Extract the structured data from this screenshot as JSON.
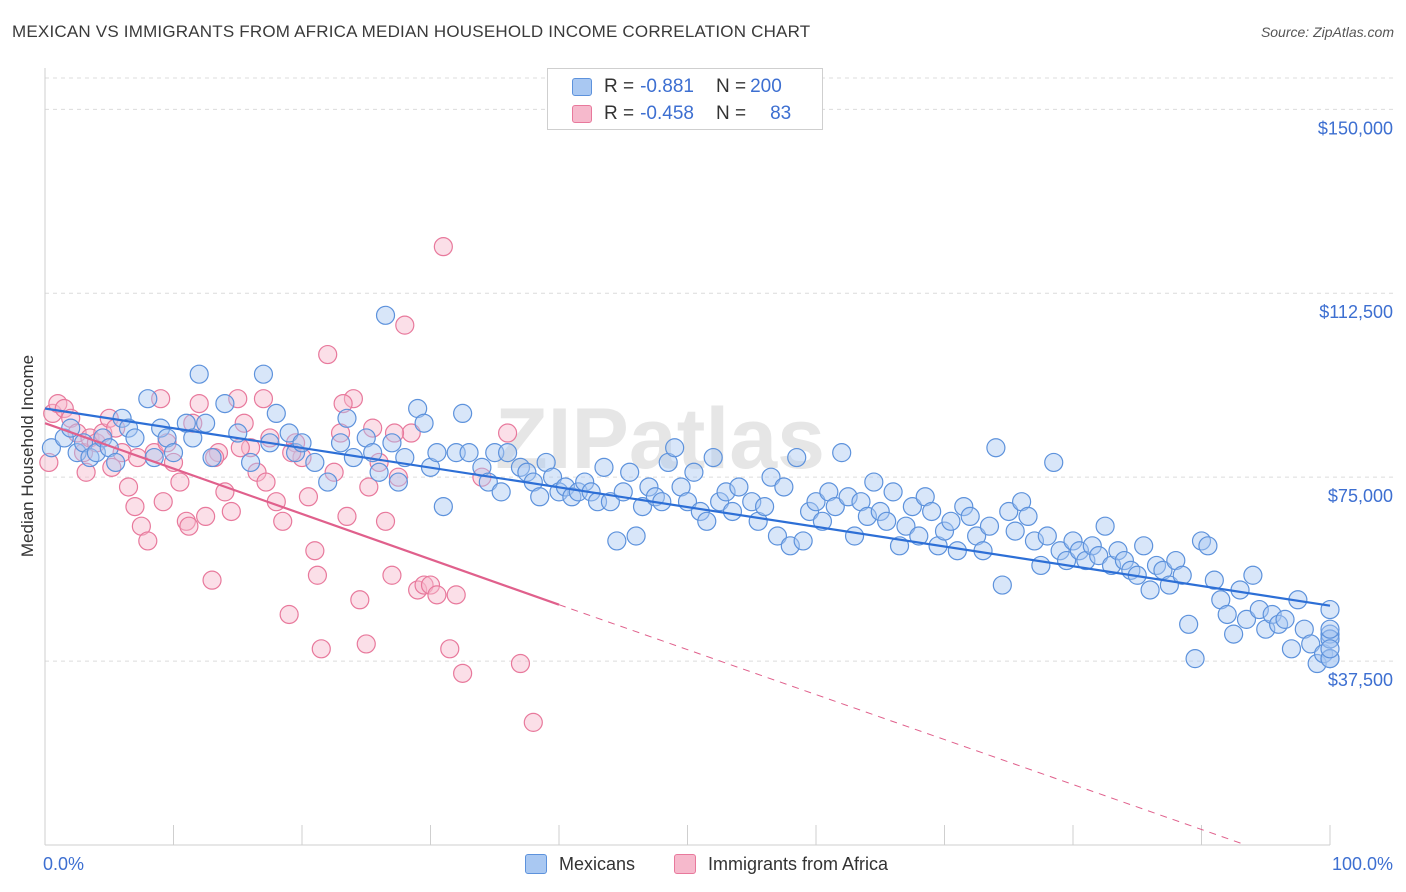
{
  "header": {
    "title": "MEXICAN VS IMMIGRANTS FROM AFRICA MEDIAN HOUSEHOLD INCOME CORRELATION CHART",
    "source": "Source: ZipAtlas.com"
  },
  "watermark": "ZIPatlas",
  "colors": {
    "blue_fill": "#a9c8f2",
    "blue_stroke": "#5d92dc",
    "blue_line": "#2d6fd6",
    "pink_fill": "#f6b9cc",
    "pink_stroke": "#e8799c",
    "pink_line": "#e0608c",
    "axis_text": "#3d6fd1",
    "grid": "#dcdcdc"
  },
  "legend": {
    "rows": [
      {
        "r_label": "R = ",
        "r_value": "-0.881",
        "n_label": "N = ",
        "n_value": "200"
      },
      {
        "r_label": "R = ",
        "r_value": "-0.458",
        "n_label": "N = ",
        "n_value": "83"
      }
    ]
  },
  "bottom_legend": [
    "Mexicans",
    "Immigrants from Africa"
  ],
  "chart_data": {
    "type": "scatter",
    "title": "MEXICAN VS IMMIGRANTS FROM AFRICA MEDIAN HOUSEHOLD INCOME CORRELATION CHART",
    "xlabel": "",
    "ylabel": "Median Household Income",
    "xlim": [
      0,
      100
    ],
    "ylim": [
      0,
      157000
    ],
    "x_tick_labels": [
      "0.0%",
      "100.0%"
    ],
    "y_ticks": [
      37500,
      75000,
      112500,
      150000
    ],
    "y_tick_labels": [
      "$37,500",
      "$75,000",
      "$112,500",
      "$150,000"
    ],
    "grid": true,
    "legend_position": "top-center",
    "series": [
      {
        "name": "Mexicans",
        "r": -0.881,
        "n": 200,
        "trend": {
          "x": [
            0,
            100
          ],
          "y": [
            89000,
            48800
          ]
        },
        "points": [
          [
            0.5,
            81000
          ],
          [
            1.5,
            83000
          ],
          [
            2,
            85000
          ],
          [
            2.5,
            80000
          ],
          [
            3,
            82000
          ],
          [
            3.5,
            79000
          ],
          [
            4,
            80000
          ],
          [
            4.5,
            83000
          ],
          [
            5,
            81000
          ],
          [
            5.5,
            78000
          ],
          [
            6,
            87000
          ],
          [
            6.5,
            85000
          ],
          [
            7,
            83000
          ],
          [
            8,
            91000
          ],
          [
            8.5,
            79000
          ],
          [
            9,
            85000
          ],
          [
            9.5,
            83000
          ],
          [
            10,
            80000
          ],
          [
            11,
            86000
          ],
          [
            11.5,
            83000
          ],
          [
            12,
            96000
          ],
          [
            12.5,
            86000
          ],
          [
            13,
            79000
          ],
          [
            14,
            90000
          ],
          [
            15,
            84000
          ],
          [
            16,
            78000
          ],
          [
            17,
            96000
          ],
          [
            17.5,
            82000
          ],
          [
            18,
            88000
          ],
          [
            19,
            84000
          ],
          [
            19.5,
            80000
          ],
          [
            20,
            82000
          ],
          [
            21,
            78000
          ],
          [
            22,
            74000
          ],
          [
            23,
            82000
          ],
          [
            23.5,
            87000
          ],
          [
            24,
            79000
          ],
          [
            25,
            83000
          ],
          [
            25.5,
            80000
          ],
          [
            26,
            76000
          ],
          [
            26.5,
            108000
          ],
          [
            27,
            82000
          ],
          [
            27.5,
            74000
          ],
          [
            28,
            79000
          ],
          [
            29,
            89000
          ],
          [
            29.5,
            86000
          ],
          [
            30,
            77000
          ],
          [
            30.5,
            80000
          ],
          [
            31,
            69000
          ],
          [
            32,
            80000
          ],
          [
            32.5,
            88000
          ],
          [
            33,
            80000
          ],
          [
            34,
            77000
          ],
          [
            34.5,
            74000
          ],
          [
            35,
            80000
          ],
          [
            35.5,
            72000
          ],
          [
            36,
            80000
          ],
          [
            37,
            77000
          ],
          [
            37.5,
            76000
          ],
          [
            38,
            74000
          ],
          [
            38.5,
            71000
          ],
          [
            39,
            78000
          ],
          [
            39.5,
            75000
          ],
          [
            40,
            72000
          ],
          [
            40.5,
            73000
          ],
          [
            41,
            71000
          ],
          [
            41.5,
            72000
          ],
          [
            42,
            74000
          ],
          [
            42.5,
            72000
          ],
          [
            43,
            70000
          ],
          [
            43.5,
            77000
          ],
          [
            44,
            70000
          ],
          [
            44.5,
            62000
          ],
          [
            45,
            72000
          ],
          [
            45.5,
            76000
          ],
          [
            46,
            63000
          ],
          [
            46.5,
            69000
          ],
          [
            47,
            73000
          ],
          [
            47.5,
            71000
          ],
          [
            48,
            70000
          ],
          [
            48.5,
            78000
          ],
          [
            49,
            81000
          ],
          [
            49.5,
            73000
          ],
          [
            50,
            70000
          ],
          [
            50.5,
            76000
          ],
          [
            51,
            68000
          ],
          [
            51.5,
            66000
          ],
          [
            52,
            79000
          ],
          [
            52.5,
            70000
          ],
          [
            53,
            72000
          ],
          [
            53.5,
            68000
          ],
          [
            54,
            73000
          ],
          [
            55,
            70000
          ],
          [
            55.5,
            66000
          ],
          [
            56,
            69000
          ],
          [
            56.5,
            75000
          ],
          [
            57,
            63000
          ],
          [
            57.5,
            73000
          ],
          [
            58,
            61000
          ],
          [
            58.5,
            79000
          ],
          [
            59,
            62000
          ],
          [
            59.5,
            68000
          ],
          [
            60,
            70000
          ],
          [
            60.5,
            66000
          ],
          [
            61,
            72000
          ],
          [
            61.5,
            69000
          ],
          [
            62,
            80000
          ],
          [
            62.5,
            71000
          ],
          [
            63,
            63000
          ],
          [
            63.5,
            70000
          ],
          [
            64,
            67000
          ],
          [
            64.5,
            74000
          ],
          [
            65,
            68000
          ],
          [
            65.5,
            66000
          ],
          [
            66,
            72000
          ],
          [
            66.5,
            61000
          ],
          [
            67,
            65000
          ],
          [
            67.5,
            69000
          ],
          [
            68,
            63000
          ],
          [
            68.5,
            71000
          ],
          [
            69,
            68000
          ],
          [
            69.5,
            61000
          ],
          [
            70,
            64000
          ],
          [
            70.5,
            66000
          ],
          [
            71,
            60000
          ],
          [
            71.5,
            69000
          ],
          [
            72,
            67000
          ],
          [
            72.5,
            63000
          ],
          [
            73,
            60000
          ],
          [
            73.5,
            65000
          ],
          [
            74,
            81000
          ],
          [
            74.5,
            53000
          ],
          [
            75,
            68000
          ],
          [
            75.5,
            64000
          ],
          [
            76,
            70000
          ],
          [
            76.5,
            67000
          ],
          [
            77,
            62000
          ],
          [
            77.5,
            57000
          ],
          [
            78,
            63000
          ],
          [
            78.5,
            78000
          ],
          [
            79,
            60000
          ],
          [
            79.5,
            58000
          ],
          [
            80,
            62000
          ],
          [
            80.5,
            60000
          ],
          [
            81,
            58000
          ],
          [
            81.5,
            61000
          ],
          [
            82,
            59000
          ],
          [
            82.5,
            65000
          ],
          [
            83,
            57000
          ],
          [
            83.5,
            60000
          ],
          [
            84,
            58000
          ],
          [
            84.5,
            56000
          ],
          [
            85,
            55000
          ],
          [
            85.5,
            61000
          ],
          [
            86,
            52000
          ],
          [
            86.5,
            57000
          ],
          [
            87,
            56000
          ],
          [
            87.5,
            53000
          ],
          [
            88,
            58000
          ],
          [
            88.5,
            55000
          ],
          [
            89,
            45000
          ],
          [
            89.5,
            38000
          ],
          [
            90,
            62000
          ],
          [
            90.5,
            61000
          ],
          [
            91,
            54000
          ],
          [
            91.5,
            50000
          ],
          [
            92,
            47000
          ],
          [
            92.5,
            43000
          ],
          [
            93,
            52000
          ],
          [
            93.5,
            46000
          ],
          [
            94,
            55000
          ],
          [
            94.5,
            48000
          ],
          [
            95,
            44000
          ],
          [
            95.5,
            47000
          ],
          [
            96,
            45000
          ],
          [
            96.5,
            46000
          ],
          [
            97,
            40000
          ],
          [
            97.5,
            50000
          ],
          [
            98,
            44000
          ],
          [
            98.5,
            41000
          ],
          [
            99,
            37000
          ],
          [
            99.5,
            39000
          ],
          [
            100,
            38000
          ],
          [
            100.5,
            42000
          ],
          [
            101,
            43000
          ],
          [
            102,
            38000
          ],
          [
            102.5,
            42000
          ],
          [
            103,
            44000
          ],
          [
            103.5,
            40000
          ],
          [
            104,
            48000
          ]
        ]
      },
      {
        "name": "Immigrants from Africa",
        "r": -0.458,
        "n": 83,
        "trend": {
          "x": [
            0,
            40
          ],
          "y": [
            86000,
            49000
          ]
        },
        "trend_extension": {
          "x": [
            40,
            100
          ],
          "y": [
            49000,
            -6000
          ]
        },
        "points": [
          [
            0.3,
            78000
          ],
          [
            0.6,
            88000
          ],
          [
            1,
            90000
          ],
          [
            1.5,
            89000
          ],
          [
            2,
            87000
          ],
          [
            2.5,
            84000
          ],
          [
            3,
            80000
          ],
          [
            3.5,
            83000
          ],
          [
            4,
            82000
          ],
          [
            4.5,
            84000
          ],
          [
            5,
            87000
          ],
          [
            5.5,
            85000
          ],
          [
            6,
            80000
          ],
          [
            6.5,
            73000
          ],
          [
            7,
            69000
          ],
          [
            7.5,
            65000
          ],
          [
            8,
            62000
          ],
          [
            8.5,
            80000
          ],
          [
            9,
            91000
          ],
          [
            9.5,
            82000
          ],
          [
            10,
            78000
          ],
          [
            10.5,
            74000
          ],
          [
            11,
            66000
          ],
          [
            11.5,
            86000
          ],
          [
            12,
            90000
          ],
          [
            12.5,
            67000
          ],
          [
            13,
            54000
          ],
          [
            13.5,
            80000
          ],
          [
            14,
            72000
          ],
          [
            14.5,
            68000
          ],
          [
            15,
            91000
          ],
          [
            15.5,
            86000
          ],
          [
            16,
            81000
          ],
          [
            16.5,
            76000
          ],
          [
            17,
            91000
          ],
          [
            17.5,
            83000
          ],
          [
            18,
            70000
          ],
          [
            18.5,
            66000
          ],
          [
            19,
            47000
          ],
          [
            19.5,
            82000
          ],
          [
            20,
            79000
          ],
          [
            20.5,
            71000
          ],
          [
            21,
            60000
          ],
          [
            21.5,
            40000
          ],
          [
            22,
            100000
          ],
          [
            22.5,
            76000
          ],
          [
            23,
            84000
          ],
          [
            23.5,
            67000
          ],
          [
            24,
            91000
          ],
          [
            24.5,
            50000
          ],
          [
            25,
            41000
          ],
          [
            25.5,
            85000
          ],
          [
            26,
            78000
          ],
          [
            26.5,
            66000
          ],
          [
            27,
            55000
          ],
          [
            27.5,
            75000
          ],
          [
            28,
            106000
          ],
          [
            28.5,
            84000
          ],
          [
            29,
            52000
          ],
          [
            29.5,
            53000
          ],
          [
            30,
            53000
          ],
          [
            30.5,
            51000
          ],
          [
            31,
            122000
          ],
          [
            31.5,
            40000
          ],
          [
            32,
            51000
          ],
          [
            32.5,
            35000
          ],
          [
            34,
            75000
          ],
          [
            36,
            84000
          ],
          [
            37,
            37000
          ],
          [
            38,
            25000
          ],
          [
            3.2,
            76000
          ],
          [
            5.2,
            77000
          ],
          [
            7.2,
            79000
          ],
          [
            9.2,
            70000
          ],
          [
            11.2,
            65000
          ],
          [
            13.2,
            79000
          ],
          [
            15.2,
            81000
          ],
          [
            17.2,
            74000
          ],
          [
            19.2,
            80000
          ],
          [
            21.2,
            55000
          ],
          [
            23.2,
            90000
          ],
          [
            25.2,
            73000
          ],
          [
            27.2,
            84000
          ]
        ]
      }
    ]
  }
}
